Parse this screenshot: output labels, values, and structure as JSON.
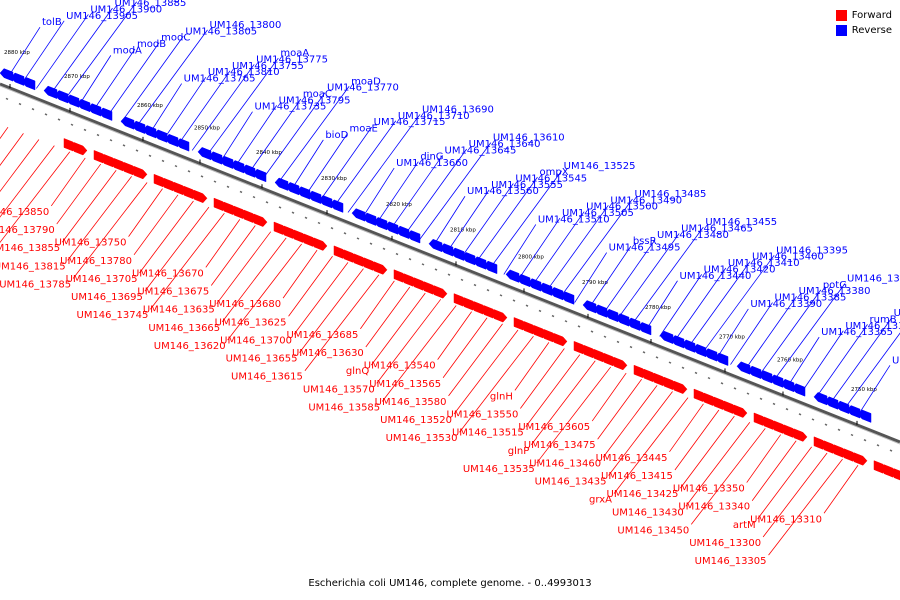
{
  "caption": "Escherichia coli UM146, complete genome. - 0..4993013",
  "colors": {
    "forward": "#ff0000",
    "reverse": "#0000ff",
    "axis": "#888888"
  },
  "legend": [
    {
      "label": "Forward",
      "color": "#ff0000"
    },
    {
      "label": "Reverse",
      "color": "#0000ff"
    }
  ],
  "ticks": [
    "2880 kbp",
    "2870 kbp",
    "2860 kbp",
    "2850 kbp",
    "2840 kbp",
    "2830 kbp",
    "2820 kbp",
    "2810 kbp",
    "2800 kbp",
    "2790 kbp",
    "2780 kbp",
    "2770 kbp",
    "2760 kbp",
    "2750 kbp"
  ],
  "reverse_labels": [
    "tolB",
    "UM146_13905",
    "UM146_13900",
    "UM146_13885",
    "UM146_13845",
    "modA",
    "modB",
    "modC",
    "UM146_13805",
    "UM146_13800",
    "UM146_13765",
    "UM146_13810",
    "UM146_13755",
    "UM146_13775",
    "moaA",
    "UM146_13735",
    "UM146_13795",
    "moaC",
    "UM146_13770",
    "moaD",
    "bioD",
    "moaE",
    "UM146_13715",
    "UM146_13710",
    "UM146_13690",
    "UM146_13660",
    "dinG",
    "UM146_13645",
    "UM146_13640",
    "UM146_13610",
    "UM146_13560",
    "UM146_13555",
    "UM146_13545",
    "ompX",
    "UM146_13525",
    "UM146_13510",
    "UM146_13505",
    "UM146_13500",
    "UM146_13490",
    "UM146_13485",
    "UM146_13495",
    "bssR",
    "UM146_13480",
    "UM146_13465",
    "UM146_13455",
    "UM146_13440",
    "UM146_13420",
    "UM146_13410",
    "UM146_13400",
    "UM146_13395",
    "UM146_13390",
    "UM146_13385",
    "UM146_13380",
    "potG",
    "UM146_13370",
    "UM146_13365",
    "UM146_13360",
    "rumB",
    "UM146_13315",
    "UM146_13320",
    "UM146_13325"
  ],
  "forward_labels": [
    "gpmA",
    "UM146_13860",
    "galM",
    "UM146_13825",
    "UM146_13820",
    "UM146_13850",
    "UM146_13790",
    "UM146_13855",
    "UM146_13815",
    "UM146_13785",
    "UM146_13750",
    "UM146_13780",
    "UM146_13705",
    "UM146_13695",
    "UM146_13745",
    "UM146_13670",
    "UM146_13675",
    "UM146_13635",
    "UM146_13665",
    "UM146_13620",
    "UM146_13680",
    "UM146_13625",
    "UM146_13700",
    "UM146_13655",
    "UM146_13615",
    "UM146_13685",
    "UM146_13630",
    "glnQ",
    "UM146_13570",
    "UM146_13585",
    "UM146_13540",
    "UM146_13565",
    "UM146_13580",
    "UM146_13520",
    "UM146_13530",
    "glnH",
    "UM146_13550",
    "UM146_13515",
    "glnP",
    "UM146_13535",
    "UM146_13605",
    "UM146_13475",
    "UM146_13460",
    "UM146_13435",
    "grxA",
    "UM146_13445",
    "UM146_13415",
    "UM146_13425",
    "UM146_13430",
    "UM146_13450",
    "UM146_13350",
    "UM146_13340",
    "artM",
    "UM146_13300",
    "UM146_13305",
    "UM146_13310"
  ]
}
